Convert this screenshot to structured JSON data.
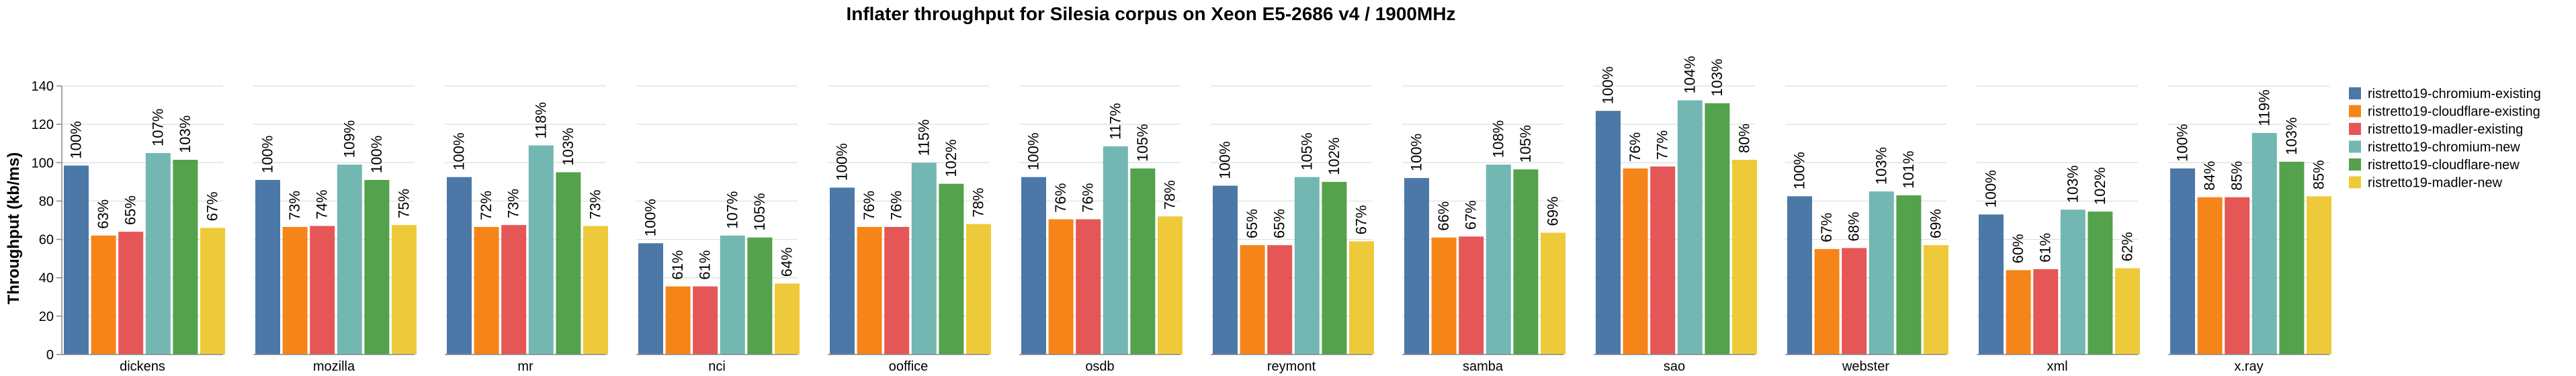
{
  "chart_data": {
    "type": "bar",
    "title": "Inflater throughput for Silesia corpus on Xeon E5-2686 v4 / 1900MHz",
    "ylabel": "Throughput (kb/ms)",
    "xlabel": "",
    "ylim": [
      0,
      140
    ],
    "yticks": [
      0,
      20,
      40,
      60,
      80,
      100,
      120,
      140
    ],
    "grid": true,
    "legend_position": "right",
    "categories": [
      "dickens",
      "mozilla",
      "mr",
      "nci",
      "ooffice",
      "osdb",
      "reymont",
      "samba",
      "sao",
      "webster",
      "xml",
      "x.ray"
    ],
    "series": [
      {
        "name": "ristretto19-chromium-existing",
        "color": "#4c78a8",
        "values": [
          98.5,
          91,
          92.5,
          58,
          87,
          92.5,
          88,
          92,
          127,
          82.5,
          73,
          97
        ],
        "labels": [
          "100%",
          "100%",
          "100%",
          "100%",
          "100%",
          "100%",
          "100%",
          "100%",
          "100%",
          "100%",
          "100%",
          "100%"
        ]
      },
      {
        "name": "ristretto19-cloudflare-existing",
        "color": "#f58518",
        "values": [
          62,
          66.5,
          66.5,
          35.5,
          66.5,
          70.5,
          57,
          61,
          97,
          55,
          44,
          82
        ],
        "labels": [
          "63%",
          "73%",
          "72%",
          "61%",
          "76%",
          "76%",
          "65%",
          "66%",
          "76%",
          "67%",
          "60%",
          "84%"
        ]
      },
      {
        "name": "ristretto19-madler-existing",
        "color": "#e45756",
        "values": [
          64,
          67,
          67.5,
          35.5,
          66.5,
          70.5,
          57,
          61.5,
          98,
          55.5,
          44.5,
          82
        ],
        "labels": [
          "65%",
          "74%",
          "73%",
          "61%",
          "76%",
          "76%",
          "65%",
          "67%",
          "77%",
          "68%",
          "61%",
          "85%"
        ]
      },
      {
        "name": "ristretto19-chromium-new",
        "color": "#72b7b2",
        "values": [
          105,
          99,
          109,
          62,
          100,
          108.5,
          92.5,
          99,
          132.5,
          85,
          75.5,
          115.5
        ],
        "labels": [
          "107%",
          "109%",
          "118%",
          "107%",
          "115%",
          "117%",
          "105%",
          "108%",
          "104%",
          "103%",
          "103%",
          "119%"
        ]
      },
      {
        "name": "ristretto19-cloudflare-new",
        "color": "#54a24b",
        "values": [
          101.5,
          91,
          95,
          61,
          89,
          97,
          90,
          96.5,
          131,
          83,
          74.5,
          100.5
        ],
        "labels": [
          "103%",
          "100%",
          "103%",
          "105%",
          "102%",
          "105%",
          "102%",
          "105%",
          "103%",
          "101%",
          "102%",
          "103%"
        ]
      },
      {
        "name": "ristretto19-madler-new",
        "color": "#eeca3b",
        "values": [
          66,
          67.5,
          67,
          37,
          68,
          72,
          59,
          63.5,
          101.5,
          57,
          45,
          82.5
        ],
        "labels": [
          "67%",
          "75%",
          "73%",
          "64%",
          "78%",
          "78%",
          "67%",
          "69%",
          "80%",
          "69%",
          "62%",
          "85%"
        ]
      }
    ]
  }
}
